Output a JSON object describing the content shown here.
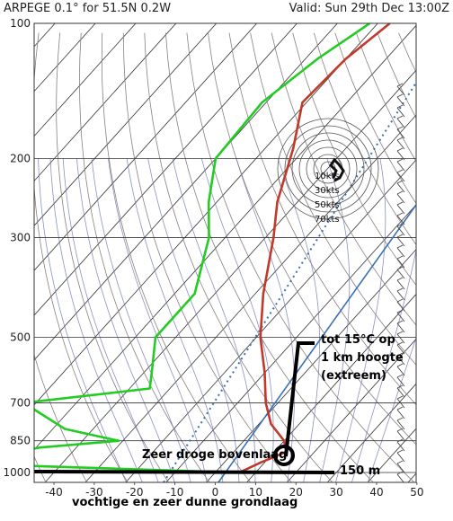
{
  "header": {
    "model_label": "ARPEGE 0.1° for 51.5N 0.2W",
    "valid_label": "Valid: Sun 29th Dec 13:00Z"
  },
  "annotations": {
    "inversion_line1": "tot 15°C op",
    "inversion_line2": "1 km hoogte",
    "inversion_line3": "(extreem)",
    "dry_layer": "Zeer droge bovenlaag",
    "ground_layer_height": "150 m",
    "ground_layer_note": "vochtige en zeer dunne grondlaag"
  },
  "colors": {
    "temperature": "#c0392b",
    "dewpoint": "#22cc22",
    "isotherm": "#333333",
    "dry_adiabat": "#8a7f7f",
    "moist_adiabat": "#6b77b0",
    "parcel": "#3a6fb7",
    "mixing_ratio": "#3a6fb7",
    "annotation": "#000000"
  },
  "chart_data": {
    "type": "line",
    "subtype": "skew-T log-p",
    "xlabel": "",
    "ylabel": "",
    "x_ticks": [
      "-40",
      "-30",
      "-20",
      "-10",
      "0",
      "10",
      "20",
      "30",
      "40",
      "50"
    ],
    "pressure_ticks": [
      "100",
      "200",
      "300",
      "500",
      "700",
      "850",
      "1000"
    ],
    "series": [
      {
        "key": "temperature",
        "points": [
          [
            100,
            -57
          ],
          [
            120,
            -60
          ],
          [
            150,
            -61
          ],
          [
            190,
            -53
          ],
          [
            250,
            -45
          ],
          [
            300,
            -38
          ],
          [
            400,
            -28
          ],
          [
            500,
            -19
          ],
          [
            600,
            -10
          ],
          [
            700,
            -3
          ],
          [
            780,
            3
          ],
          [
            850,
            10
          ],
          [
            900,
            13
          ],
          [
            950,
            9
          ],
          [
            1000,
            6
          ]
        ]
      },
      {
        "key": "dewpoint",
        "points": [
          [
            100,
            -62
          ],
          [
            120,
            -67
          ],
          [
            150,
            -71
          ],
          [
            200,
            -70
          ],
          [
            250,
            -62
          ],
          [
            300,
            -54
          ],
          [
            400,
            -45
          ],
          [
            500,
            -45
          ],
          [
            600,
            -38
          ],
          [
            650,
            -35
          ],
          [
            700,
            -63
          ],
          [
            800,
            -47
          ],
          [
            850,
            -31
          ],
          [
            880,
            -49
          ],
          [
            920,
            -59
          ],
          [
            960,
            -59
          ],
          [
            1000,
            5
          ]
        ]
      }
    ],
    "hodograph": {
      "ring_labels": [
        "10kts",
        "30kts",
        "50kts",
        "70kts"
      ]
    }
  }
}
